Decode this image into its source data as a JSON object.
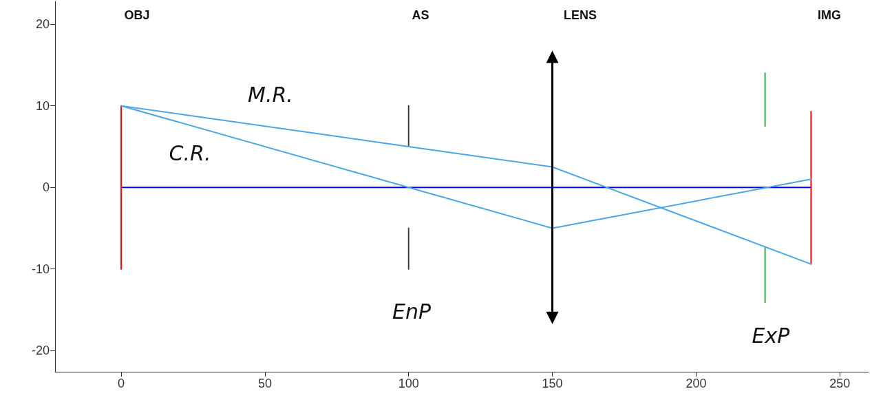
{
  "chart_data": {
    "type": "line",
    "xlim": [
      -23,
      260
    ],
    "ylim": [
      -22.6,
      22.8
    ],
    "xticks": [
      0,
      50,
      100,
      150,
      200,
      250
    ],
    "yticks": [
      -20,
      -10,
      0,
      10,
      20
    ],
    "grid": false,
    "marker": "none",
    "series": [
      {
        "color": "#0000ff",
        "x": [
          0,
          240
        ],
        "values": [
          0,
          0
        ]
      },
      {
        "color": "#ff0000",
        "x": [
          0,
          0
        ],
        "values": [
          -10,
          10
        ]
      },
      {
        "color": "#ff0000",
        "x": [
          240,
          240
        ],
        "values": [
          9.3,
          -9.4
        ]
      },
      {
        "color": "#404040",
        "x": [
          100,
          100
        ],
        "values": [
          10,
          5
        ]
      },
      {
        "color": "#404040",
        "x": [
          100,
          100
        ],
        "values": [
          -5,
          -10
        ]
      },
      {
        "color": "#22b14c",
        "x": [
          224,
          224
        ],
        "values": [
          14,
          7.5
        ]
      },
      {
        "color": "#22b14c",
        "x": [
          224,
          224
        ],
        "values": [
          -7.3,
          -14.1
        ]
      },
      {
        "color": "#4da6e0",
        "x": [
          0,
          100,
          150,
          240
        ],
        "values": [
          10,
          5,
          2.5,
          -9.4
        ]
      },
      {
        "color": "#4da6e0",
        "x": [
          0,
          100,
          150,
          240
        ],
        "values": [
          10,
          0,
          -5,
          1
        ]
      },
      {
        "color": "#000000",
        "x": [
          150,
          150
        ],
        "values": [
          -16,
          16
        ],
        "marker": "triangle"
      }
    ],
    "annotations": [
      "OBJ",
      "AS",
      "LENS",
      "IMG",
      "M.R.",
      "C.R.",
      "EnP",
      "ExP"
    ]
  }
}
